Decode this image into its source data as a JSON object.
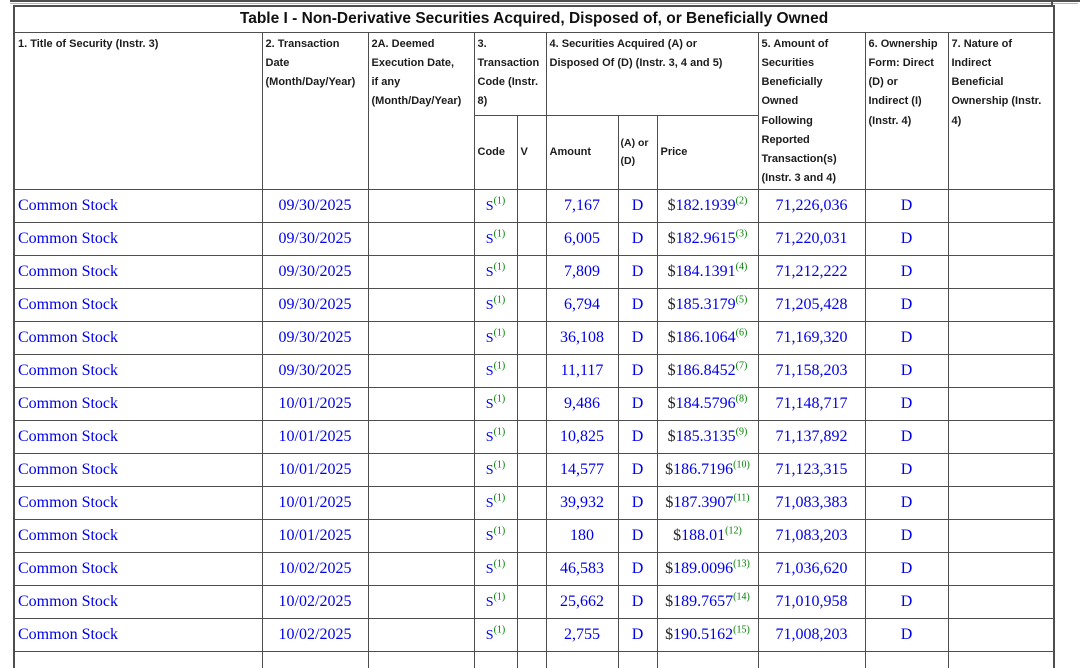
{
  "colors": {
    "data_text": "#0000EE",
    "footnote": "#008000",
    "border": "#4e4e4e",
    "header_text": "#1c1c1c"
  },
  "table": {
    "title": "Table I - Non-Derivative Securities Acquired, Disposed of, or Beneficially Owned",
    "columns": {
      "title": "1. Title of Security (Instr. 3)",
      "transaction_date": "2. Transaction\nDate\n(Month/Day/Year)",
      "deemed_execution_date": "2A. Deemed\nExecution Date,\nif any\n(Month/Day/Year)",
      "transaction_code": "3.\nTransaction\nCode (Instr.\n8)",
      "securities_acquired_disposed": "4. Securities Acquired (A) or\nDisposed Of (D) (Instr. 3, 4 and 5)",
      "amount_owned_following": "5. Amount of\nSecurities\nBeneficially\nOwned\nFollowing\nReported\nTransaction(s)\n(Instr. 3 and 4)",
      "ownership_form": "6. Ownership\nForm: Direct\n(D) or\nIndirect (I)\n(Instr. 4)",
      "nature_of_indirect_ownership": "7. Nature of\nIndirect\nBeneficial\nOwnership (Instr.\n4)"
    },
    "subcolumns": {
      "code": "Code",
      "v": "V",
      "amount": "Amount",
      "a_or_d": "(A) or\n(D)",
      "price": "Price"
    },
    "currency_symbol": "$",
    "rows": [
      {
        "security": "Common Stock",
        "transaction_date": "09/30/2025",
        "deemed_execution_date": "",
        "code": "S",
        "code_footnote": "(1)",
        "v": "",
        "amount": "7,167",
        "acquired_or_disposed": "D",
        "price": "182.1939",
        "price_footnote": "(2)",
        "shares_owned_following": "71,226,036",
        "ownership_form": "D",
        "nature_of_indirect_ownership": ""
      },
      {
        "security": "Common Stock",
        "transaction_date": "09/30/2025",
        "deemed_execution_date": "",
        "code": "S",
        "code_footnote": "(1)",
        "v": "",
        "amount": "6,005",
        "acquired_or_disposed": "D",
        "price": "182.9615",
        "price_footnote": "(3)",
        "shares_owned_following": "71,220,031",
        "ownership_form": "D",
        "nature_of_indirect_ownership": ""
      },
      {
        "security": "Common Stock",
        "transaction_date": "09/30/2025",
        "deemed_execution_date": "",
        "code": "S",
        "code_footnote": "(1)",
        "v": "",
        "amount": "7,809",
        "acquired_or_disposed": "D",
        "price": "184.1391",
        "price_footnote": "(4)",
        "shares_owned_following": "71,212,222",
        "ownership_form": "D",
        "nature_of_indirect_ownership": ""
      },
      {
        "security": "Common Stock",
        "transaction_date": "09/30/2025",
        "deemed_execution_date": "",
        "code": "S",
        "code_footnote": "(1)",
        "v": "",
        "amount": "6,794",
        "acquired_or_disposed": "D",
        "price": "185.3179",
        "price_footnote": "(5)",
        "shares_owned_following": "71,205,428",
        "ownership_form": "D",
        "nature_of_indirect_ownership": ""
      },
      {
        "security": "Common Stock",
        "transaction_date": "09/30/2025",
        "deemed_execution_date": "",
        "code": "S",
        "code_footnote": "(1)",
        "v": "",
        "amount": "36,108",
        "acquired_or_disposed": "D",
        "price": "186.1064",
        "price_footnote": "(6)",
        "shares_owned_following": "71,169,320",
        "ownership_form": "D",
        "nature_of_indirect_ownership": ""
      },
      {
        "security": "Common Stock",
        "transaction_date": "09/30/2025",
        "deemed_execution_date": "",
        "code": "S",
        "code_footnote": "(1)",
        "v": "",
        "amount": "11,117",
        "acquired_or_disposed": "D",
        "price": "186.8452",
        "price_footnote": "(7)",
        "shares_owned_following": "71,158,203",
        "ownership_form": "D",
        "nature_of_indirect_ownership": ""
      },
      {
        "security": "Common Stock",
        "transaction_date": "10/01/2025",
        "deemed_execution_date": "",
        "code": "S",
        "code_footnote": "(1)",
        "v": "",
        "amount": "9,486",
        "acquired_or_disposed": "D",
        "price": "184.5796",
        "price_footnote": "(8)",
        "shares_owned_following": "71,148,717",
        "ownership_form": "D",
        "nature_of_indirect_ownership": ""
      },
      {
        "security": "Common Stock",
        "transaction_date": "10/01/2025",
        "deemed_execution_date": "",
        "code": "S",
        "code_footnote": "(1)",
        "v": "",
        "amount": "10,825",
        "acquired_or_disposed": "D",
        "price": "185.3135",
        "price_footnote": "(9)",
        "shares_owned_following": "71,137,892",
        "ownership_form": "D",
        "nature_of_indirect_ownership": ""
      },
      {
        "security": "Common Stock",
        "transaction_date": "10/01/2025",
        "deemed_execution_date": "",
        "code": "S",
        "code_footnote": "(1)",
        "v": "",
        "amount": "14,577",
        "acquired_or_disposed": "D",
        "price": "186.7196",
        "price_footnote": "(10)",
        "shares_owned_following": "71,123,315",
        "ownership_form": "D",
        "nature_of_indirect_ownership": ""
      },
      {
        "security": "Common Stock",
        "transaction_date": "10/01/2025",
        "deemed_execution_date": "",
        "code": "S",
        "code_footnote": "(1)",
        "v": "",
        "amount": "39,932",
        "acquired_or_disposed": "D",
        "price": "187.3907",
        "price_footnote": "(11)",
        "shares_owned_following": "71,083,383",
        "ownership_form": "D",
        "nature_of_indirect_ownership": ""
      },
      {
        "security": "Common Stock",
        "transaction_date": "10/01/2025",
        "deemed_execution_date": "",
        "code": "S",
        "code_footnote": "(1)",
        "v": "",
        "amount": "180",
        "acquired_or_disposed": "D",
        "price": "188.01",
        "price_footnote": "(12)",
        "shares_owned_following": "71,083,203",
        "ownership_form": "D",
        "nature_of_indirect_ownership": ""
      },
      {
        "security": "Common Stock",
        "transaction_date": "10/02/2025",
        "deemed_execution_date": "",
        "code": "S",
        "code_footnote": "(1)",
        "v": "",
        "amount": "46,583",
        "acquired_or_disposed": "D",
        "price": "189.0096",
        "price_footnote": "(13)",
        "shares_owned_following": "71,036,620",
        "ownership_form": "D",
        "nature_of_indirect_ownership": ""
      },
      {
        "security": "Common Stock",
        "transaction_date": "10/02/2025",
        "deemed_execution_date": "",
        "code": "S",
        "code_footnote": "(1)",
        "v": "",
        "amount": "25,662",
        "acquired_or_disposed": "D",
        "price": "189.7657",
        "price_footnote": "(14)",
        "shares_owned_following": "71,010,958",
        "ownership_form": "D",
        "nature_of_indirect_ownership": ""
      },
      {
        "security": "Common Stock",
        "transaction_date": "10/02/2025",
        "deemed_execution_date": "",
        "code": "S",
        "code_footnote": "(1)",
        "v": "",
        "amount": "2,755",
        "acquired_or_disposed": "D",
        "price": "190.5162",
        "price_footnote": "(15)",
        "shares_owned_following": "71,008,203",
        "ownership_form": "D",
        "nature_of_indirect_ownership": ""
      }
    ]
  }
}
